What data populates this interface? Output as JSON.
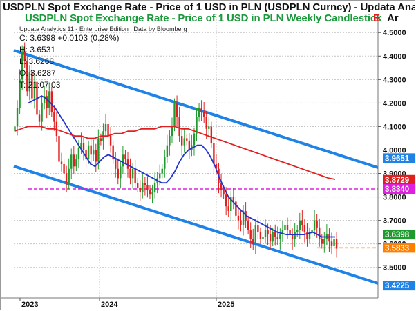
{
  "header": {
    "title": "USDPLN Spot Exchange Rate - Price of 1 USD in PLN (USDPLN Curncy) -  Updata Analytic",
    "subtitle": "USDPLN Spot Exchange Rate - Price of 1 USD in PLN Weekly Candlestick",
    "edge_marker": "E",
    "right_label": "Ar",
    "branding": "Updata Analytics 11 - Enterprise Edition : Data by Bloomberg"
  },
  "ohlc": {
    "close": "C: 3.6398  +0.0103 (0.28%)",
    "high": "H: 3.6531",
    "low": "L: 3.6268",
    "open": "O: 3.6287",
    "time": "T: 21:07:03"
  },
  "colors": {
    "up": "#1f9a2e",
    "down": "#e02020",
    "ma_short": "#2233cc",
    "ma_long": "#e02020",
    "channel": "#1e82e6",
    "support": "#ff8000",
    "resistance": "#e020e0",
    "grid": "#c4c4c4"
  },
  "chart_data": {
    "type": "candlestick",
    "frequency": "weekly",
    "ylim": [
      3.37,
      4.58
    ],
    "y_ticks": [
      3.5,
      3.6,
      3.7,
      3.8,
      3.9,
      4.0,
      4.1,
      4.2,
      4.3,
      4.4,
      4.5
    ],
    "y_tick_labels": [
      "3.5000",
      "3.6000",
      "3.7000",
      "3.8000",
      "3.9000",
      "4.0000",
      "4.1000",
      "4.2000",
      "4.3000",
      "4.4000",
      "4.5000"
    ],
    "x_labels": [
      "2023",
      "2024",
      "2025"
    ],
    "price_levels": [
      {
        "label": "3.9651",
        "value": 3.9651,
        "bg": "#1e82e6",
        "text": "#ffffff"
      },
      {
        "label": "3.8729",
        "value": 3.8729,
        "bg": "#e02020",
        "text": "#ffffff"
      },
      {
        "label": "3.8340",
        "value": 3.834,
        "bg": "#e020e0",
        "text": "#ffffff"
      },
      {
        "label": "3.6398",
        "value": 3.6398,
        "bg": "#1f9a2e",
        "text": "#ffffff"
      },
      {
        "label": "3.5833",
        "value": 3.5833,
        "bg": "#ff8000",
        "text": "#ffffff"
      },
      {
        "label": "3.4225",
        "value": 3.4225,
        "bg": "#1e82e6",
        "text": "#ffffff"
      }
    ],
    "horizontal_lines": [
      {
        "name": "resistance",
        "value": 3.834,
        "style": "dashed",
        "color": "#e020e0"
      },
      {
        "name": "support",
        "value": 3.5833,
        "style": "dashed",
        "color": "#ff8000"
      }
    ],
    "channel": {
      "upper": [
        [
          0,
          4.45
        ],
        [
          172,
          3.9651
        ]
      ],
      "lower": [
        [
          0,
          3.92
        ],
        [
          172,
          3.4225
        ]
      ]
    },
    "closes": [
      4.1,
      4.18,
      4.3,
      4.42,
      4.38,
      4.25,
      4.33,
      4.22,
      4.29,
      4.15,
      4.12,
      4.2,
      4.23,
      4.18,
      4.25,
      4.16,
      4.12,
      4.06,
      3.95,
      3.94,
      3.9,
      3.86,
      3.92,
      3.98,
      3.93,
      3.96,
      4.01,
      4.03,
      4.0,
      3.96,
      4.02,
      3.98,
      4.0,
      3.95,
      4.05,
      4.04,
      4.08,
      4.11,
      4.06,
      4.02,
      3.96,
      3.92,
      3.88,
      3.93,
      3.98,
      3.96,
      3.92,
      3.88,
      3.92,
      3.86,
      3.84,
      3.82,
      3.86,
      3.85,
      3.83,
      3.81,
      3.82,
      3.86,
      3.88,
      3.9,
      3.92,
      3.97,
      4.02,
      4.06,
      4.1,
      4.2,
      4.14,
      4.06,
      4.02,
      4.05,
      4.04,
      4.0,
      4.02,
      4.07,
      4.14,
      4.18,
      4.16,
      4.14,
      4.09,
      4.1,
      4.03,
      3.94,
      3.92,
      3.86,
      3.83,
      3.81,
      3.76,
      3.74,
      3.8,
      3.78,
      3.72,
      3.7,
      3.68,
      3.74,
      3.7,
      3.66,
      3.62,
      3.6,
      3.68,
      3.65,
      3.62,
      3.63,
      3.66,
      3.64,
      3.61,
      3.65,
      3.63,
      3.62,
      3.64,
      3.66,
      3.68,
      3.66,
      3.64,
      3.62,
      3.65,
      3.66,
      3.7,
      3.68,
      3.65,
      3.62,
      3.65,
      3.66,
      3.7,
      3.67,
      3.62,
      3.6,
      3.62,
      3.64,
      3.61,
      3.59,
      3.62,
      3.58,
      3.55,
      3.59,
      3.65,
      3.72,
      3.74,
      3.7,
      3.72,
      3.69,
      3.64,
      3.62,
      3.6,
      3.64,
      3.62,
      3.6,
      3.63,
      3.65,
      3.62,
      3.6,
      3.64
    ],
    "ma_short": [
      4.2,
      4.21,
      4.22,
      4.23,
      4.22,
      4.2,
      4.18,
      4.15,
      4.12,
      4.09,
      4.06,
      4.03,
      4.0,
      3.97,
      3.94,
      3.93,
      3.95,
      3.97,
      3.98,
      3.97,
      3.96,
      3.95,
      3.94,
      3.93,
      3.92,
      3.91,
      3.9,
      3.89,
      3.88,
      3.87,
      3.86,
      3.86,
      3.88,
      3.91,
      3.95,
      3.98,
      4.0,
      4.01,
      4.02,
      4.02,
      4.0,
      3.97,
      3.93,
      3.88,
      3.84,
      3.8,
      3.78,
      3.76,
      3.74,
      3.72,
      3.71,
      3.7,
      3.69,
      3.68,
      3.67,
      3.66,
      3.65,
      3.645,
      3.64,
      3.64,
      3.64,
      3.64,
      3.64,
      3.645,
      3.65,
      3.64,
      3.63,
      3.63,
      3.63,
      3.63
    ],
    "ma_long": [
      4.08,
      4.09,
      4.1,
      4.1,
      4.1,
      4.09,
      4.09,
      4.08,
      4.07,
      4.06,
      4.06,
      4.05,
      4.05,
      4.06,
      4.06,
      4.07,
      4.07,
      4.08,
      4.08,
      4.09,
      4.09,
      4.09,
      4.1,
      4.1,
      4.1,
      4.09,
      4.09,
      4.08,
      4.07,
      4.06,
      4.05,
      4.04,
      4.03,
      4.02,
      4.01,
      4.0,
      3.99,
      3.98,
      3.97,
      3.96,
      3.95,
      3.94,
      3.93,
      3.92,
      3.91,
      3.9,
      3.89,
      3.88,
      3.875
    ]
  }
}
